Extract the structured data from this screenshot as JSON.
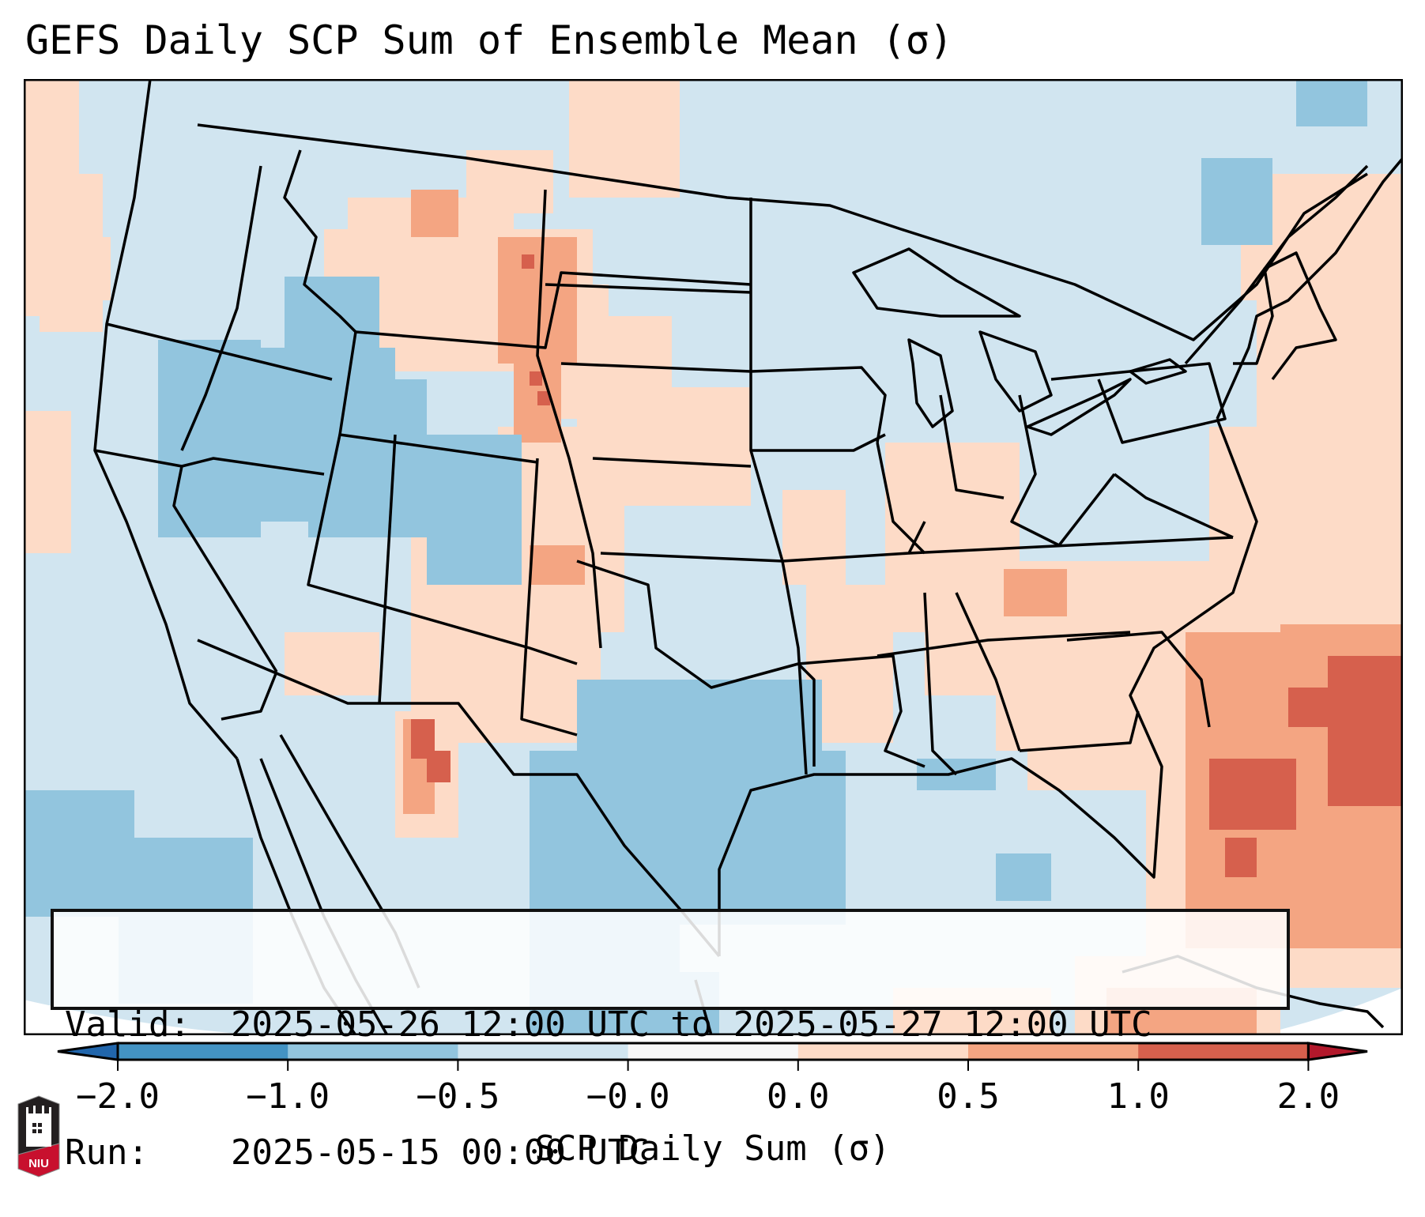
{
  "title": "GEFS Daily SCP Sum of Ensemble Mean (σ)",
  "annotation": {
    "valid_label": "Valid:",
    "valid_value": "2025-05-26 12:00 UTC to 2025-05-27 12:00 UTC",
    "run_label": "Run:",
    "run_value": "2025-05-15 00:00 UTC"
  },
  "colorbar": {
    "label": "SCP Daily Sum (σ)",
    "ticks": [
      "−2.0",
      "−1.0",
      "−0.5",
      "−0.0",
      "0.0",
      "0.5",
      "1.0",
      "2.0"
    ],
    "bins": [
      {
        "range": "< -2.0",
        "color": "#2166AC"
      },
      {
        "range": "-2.0 to -1.0",
        "color": "#4393C3"
      },
      {
        "range": "-1.0 to -0.5",
        "color": "#92C5DE"
      },
      {
        "range": "-0.5 to -0.0",
        "color": "#D1E5F0"
      },
      {
        "range": "-0.0 to 0.0",
        "color": "#F7F7F7"
      },
      {
        "range": "0.0 to 0.5",
        "color": "#FDDBC7"
      },
      {
        "range": "0.5 to 1.0",
        "color": "#F4A582"
      },
      {
        "range": "1.0 to 2.0",
        "color": "#D6604D"
      },
      {
        "range": "> 2.0",
        "color": "#B2182B"
      }
    ],
    "extend": "both"
  },
  "map": {
    "region": "Contiguous United States",
    "projection_background": "#ffffff",
    "base_color": "#D1E5F0",
    "features": [
      "state-borders",
      "coastlines",
      "great-lakes",
      "country-borders"
    ],
    "anomaly_regions": [
      {
        "name": "northern-rockies-plains",
        "level": "0.0 to 0.5",
        "color": "#FDDBC7"
      },
      {
        "name": "eastern-wyoming-colorado-front-range",
        "level": "0.5 to 1.0",
        "color": "#F4A582"
      },
      {
        "name": "eastern-montana-peak",
        "level": "1.0 to 2.0",
        "color": "#D6604D"
      },
      {
        "name": "arizona-mexico-border",
        "level": "1.0 to 2.0",
        "color": "#D6604D"
      },
      {
        "name": "tennessee-valley-southeast",
        "level": "0.0 to 0.5",
        "color": "#FDDBC7"
      },
      {
        "name": "western-atlantic-offshore",
        "level": "0.5 to 1.0",
        "color": "#F4A582"
      },
      {
        "name": "bahamas-offshore-peak",
        "level": "1.0 to 2.0",
        "color": "#D6604D"
      },
      {
        "name": "great-basin",
        "level": "-1.0 to -0.5",
        "color": "#92C5DE"
      },
      {
        "name": "central-texas-mexico",
        "level": "-1.0 to -0.5",
        "color": "#92C5DE"
      },
      {
        "name": "eastern-pacific",
        "level": "-1.0 to -0.5",
        "color": "#92C5DE"
      }
    ]
  },
  "logo": {
    "text": "NIU"
  }
}
